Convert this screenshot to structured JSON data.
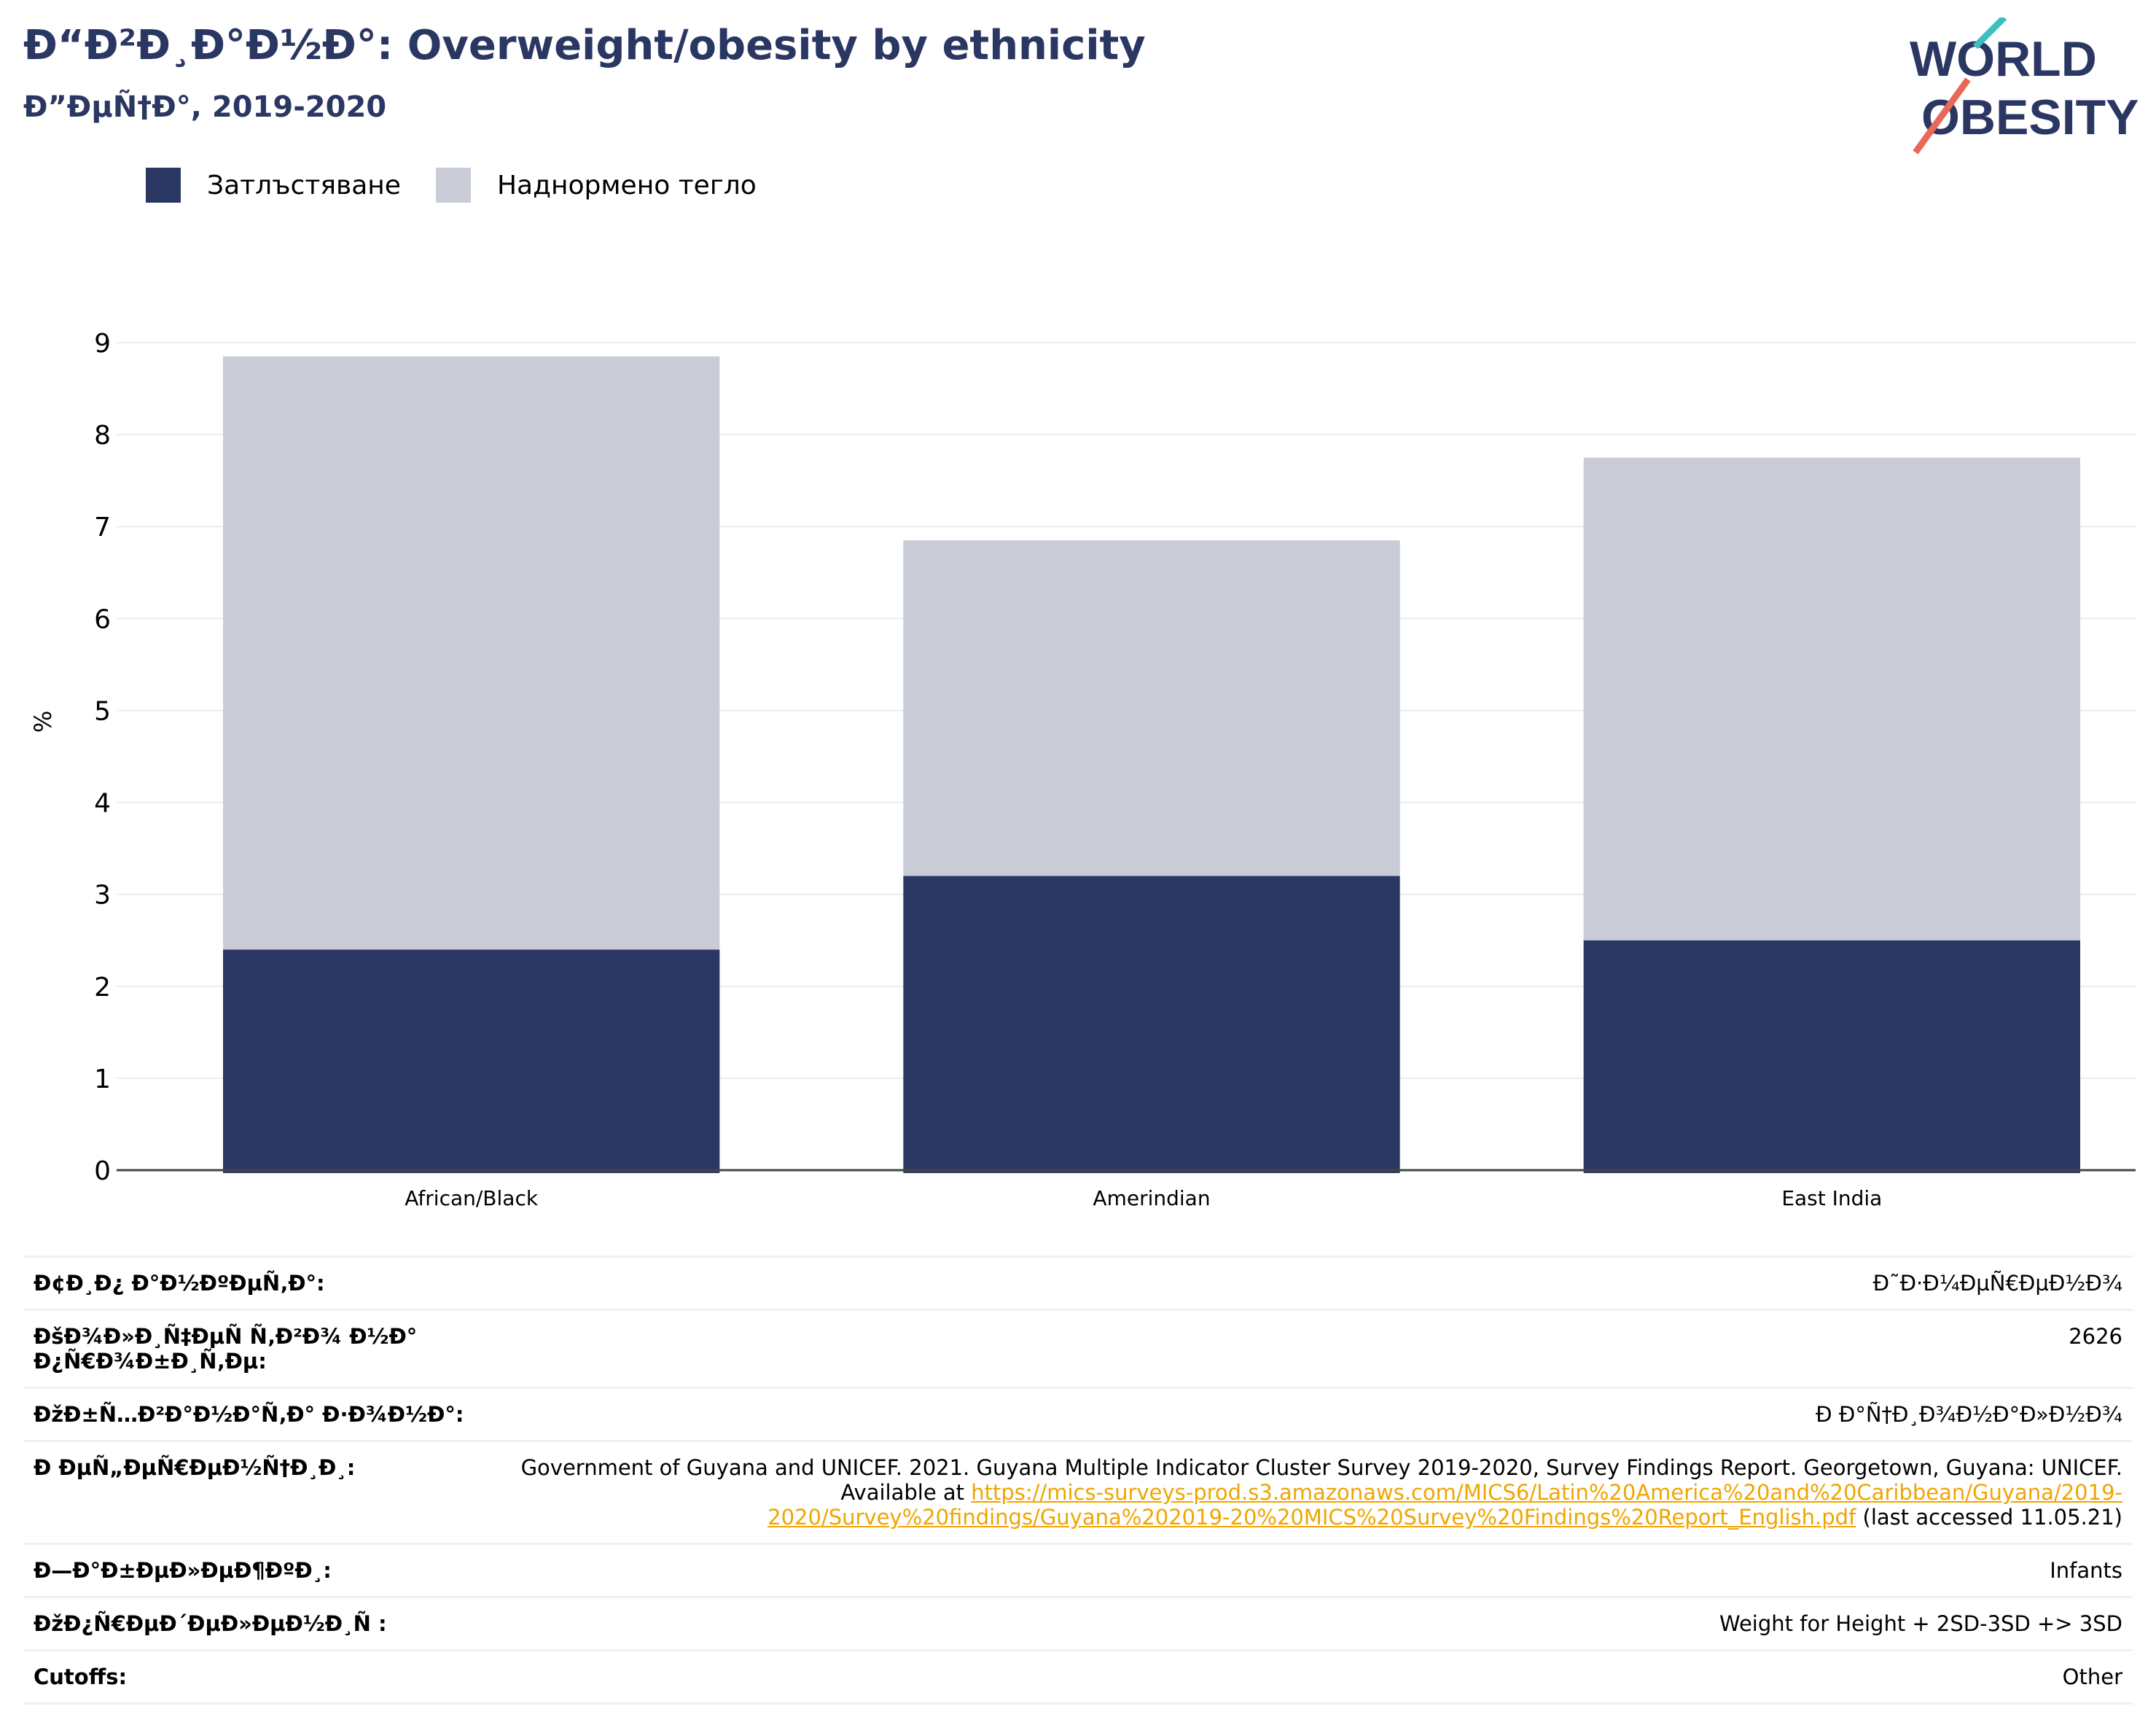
{
  "header": {
    "title": "Ð“Ð²Ð¸Ð°Ð½Ð°: Overweight/obesity by ethnicity",
    "subtitle": "Ð”ÐµÑ†Ð°, 2019-2020"
  },
  "logo": {
    "line1": "WORLD",
    "line2": "OBESITY"
  },
  "colors": {
    "obesity": "#2b3763",
    "overweight": "#c9cbd6",
    "title": "#2b3763",
    "link": "#f0a500",
    "logo_teal": "#3bbfbf",
    "logo_red": "#e8685a"
  },
  "chart_data": {
    "type": "bar",
    "stacked": true,
    "categories": [
      "African/Black",
      "Amerindian",
      "East India"
    ],
    "series": [
      {
        "name": "Затлъстяване",
        "values": [
          2.4,
          3.2,
          2.5
        ]
      },
      {
        "name": "Наднормено тегло",
        "values": [
          6.45,
          3.65,
          5.25
        ]
      }
    ],
    "ylabel": "%",
    "ylim": [
      0,
      9
    ],
    "yticks": [
      0,
      1,
      2,
      3,
      4,
      5,
      6,
      7,
      8,
      9
    ],
    "grid": true,
    "legend": "top-left"
  },
  "info": [
    {
      "label": "Ð¢Ð¸Ð¿ Ð°Ð½ÐºÐµÑ‚Ð°:",
      "value": "Ð˜Ð·Ð¼ÐµÑ€ÐµÐ½Ð¾"
    },
    {
      "label": "ÐšÐ¾Ð»Ð¸Ñ‡ÐµÑ Ñ‚Ð²Ð¾ Ð½Ð° Ð¿Ñ€Ð¾Ð±Ð¸Ñ‚Ðµ:",
      "value": "2626"
    },
    {
      "label": "ÐžÐ±Ñ…Ð²Ð°Ð½Ð°Ñ‚Ð° Ð·Ð¾Ð½Ð°:",
      "value": "Ð Ð°Ñ†Ð¸Ð¾Ð½Ð°Ð»Ð½Ð¾"
    },
    {
      "label": "Ð ÐµÑ„ÐµÑ€ÐµÐ½Ñ†Ð¸Ð¸:",
      "value_pre": "Government of Guyana and UNICEF. 2021. Guyana Multiple Indicator Cluster Survey 2019-2020, Survey Findings Report. Georgetown, Guyana: UNICEF. Available at ",
      "link": "https://mics-surveys-prod.s3.amazonaws.com/MICS6/Latin%20America%20and%20Caribbean/Guyana/2019-2020/Survey%20findings/Guyana%202019-20%20MICS%20Survey%20Findings%20Report_English.pdf",
      "value_post": " (last accessed 11.05.21)"
    },
    {
      "label": "Ð—Ð°Ð±ÐµÐ»ÐµÐ¶ÐºÐ¸:",
      "value": "Infants"
    },
    {
      "label": "ÐžÐ¿Ñ€ÐµÐ´ÐµÐ»ÐµÐ½Ð¸Ñ :",
      "value": "Weight for Height + 2SD-3SD +> 3SD"
    },
    {
      "label": "Cutoffs:",
      "value": "Other"
    }
  ]
}
